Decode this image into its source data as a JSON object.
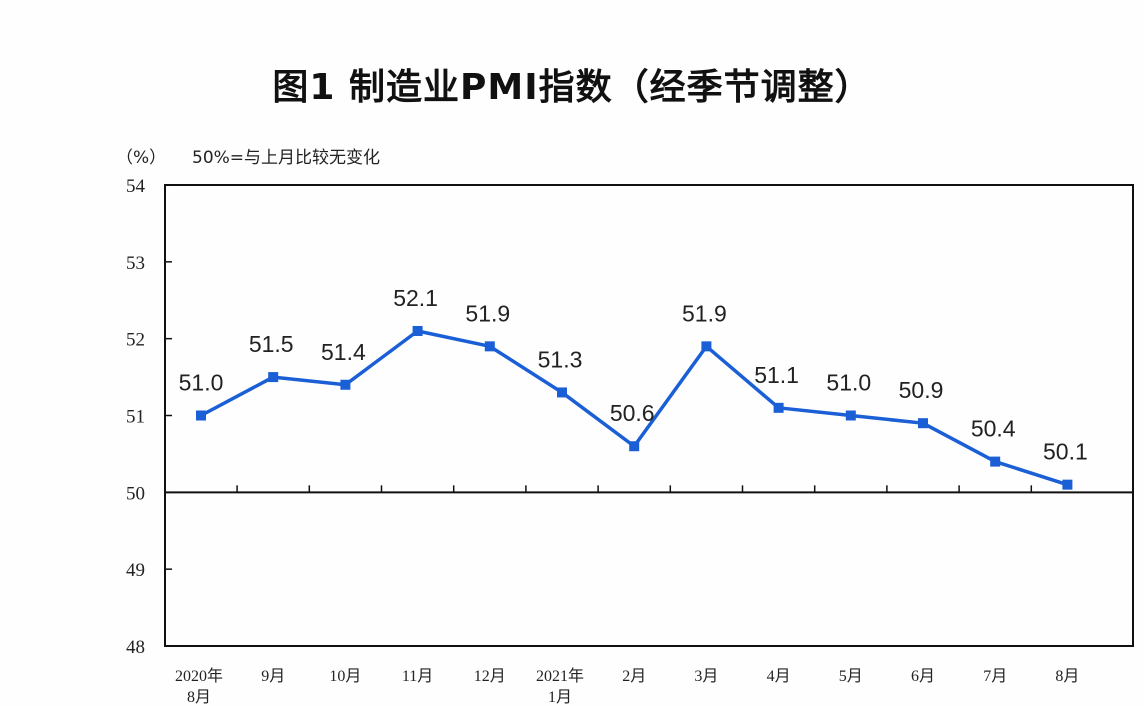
{
  "chart_data": {
    "type": "line",
    "title": "图1 制造业PMI指数（经季节调整）",
    "unit_label": "（%）",
    "note": "50%=与上月比较无变化",
    "categories": [
      [
        "2020年",
        "8月"
      ],
      [
        "9月"
      ],
      [
        "10月"
      ],
      [
        "11月"
      ],
      [
        "12月"
      ],
      [
        "2021年",
        "1月"
      ],
      [
        "2月"
      ],
      [
        "3月"
      ],
      [
        "4月"
      ],
      [
        "5月"
      ],
      [
        "6月"
      ],
      [
        "7月"
      ],
      [
        "8月"
      ]
    ],
    "values": [
      51.0,
      51.5,
      51.4,
      52.1,
      51.9,
      51.3,
      50.6,
      51.9,
      51.1,
      51.0,
      50.9,
      50.4,
      50.1
    ],
    "data_labels": [
      "51.0",
      "51.5",
      "51.4",
      "52.1",
      "51.9",
      "51.3",
      "50.6",
      "51.9",
      "51.1",
      "51.0",
      "50.9",
      "50.4",
      "50.1"
    ],
    "ylim": [
      48,
      54
    ],
    "yticks": [
      48,
      49,
      50,
      51,
      52,
      53,
      54
    ],
    "reference_line": 50,
    "grid": false,
    "line_color": "#1a5fd6"
  }
}
